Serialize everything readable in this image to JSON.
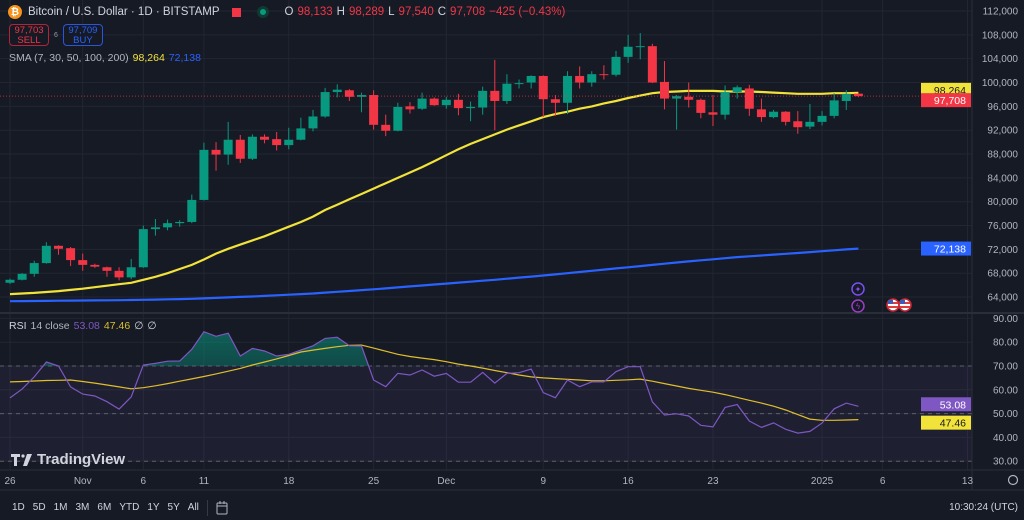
{
  "header": {
    "symbol_title": "Bitcoin / U.S. Dollar · 1D · BITSTAMP",
    "coin_icon": "bitcoin-icon",
    "ohlc": {
      "o_label": "O",
      "o": "98,133",
      "h_label": "H",
      "h": "98,289",
      "l_label": "L",
      "l": "97,540",
      "c_label": "C",
      "c": "97,708",
      "change": "−425 (−0.43%)"
    },
    "sell": {
      "price": "97,703",
      "label": "SELL"
    },
    "buy": {
      "price": "97,709",
      "label": "BUY"
    },
    "spread": "6"
  },
  "indicators": {
    "sma": {
      "label": "SMA (7, 30, 50, 100, 200)",
      "value1": "98,264",
      "value2": "72,138"
    },
    "rsi": {
      "name": "RSI",
      "params": "14 close",
      "value": "53.08",
      "ma_value": "47.46",
      "extra1": "∅",
      "extra2": "∅"
    }
  },
  "colors": {
    "up": "#089981",
    "down": "#f23645",
    "sma_fast": "#f2e33a",
    "sma_slow": "#2962ff",
    "rsi": "#7e57c2",
    "rsi_ma": "#e0bf2a",
    "background": "#161a25"
  },
  "price_tags": {
    "sma_fast": "98,264",
    "last": "97,708",
    "sma_slow": "72,138"
  },
  "rsi_tags": {
    "rsi": "53.08",
    "ma": "47.46"
  },
  "chart_data": {
    "type": "candlestick",
    "ylim": [
      62000,
      113000
    ],
    "y_ticks": [
      "112,000",
      "108,000",
      "104,000",
      "100,000",
      "96,000",
      "92,000",
      "88,000",
      "84,000",
      "80,000",
      "76,000",
      "72,000",
      "68,000",
      "64,000"
    ],
    "candles": [
      [
        "2024-10-26",
        66400,
        67100,
        66200,
        66900
      ],
      [
        "2024-10-27",
        66900,
        68000,
        66800,
        67900
      ],
      [
        "2024-10-28",
        67900,
        70100,
        67400,
        69700
      ],
      [
        "2024-10-29",
        69700,
        73200,
        69600,
        72600
      ],
      [
        "2024-10-30",
        72600,
        72700,
        71100,
        72100
      ],
      [
        "2024-10-31",
        72200,
        72400,
        69200,
        70200
      ],
      [
        "2024-11-01",
        70200,
        71300,
        68400,
        69400
      ],
      [
        "2024-11-02",
        69400,
        69600,
        68900,
        69100
      ],
      [
        "2024-11-03",
        69000,
        69100,
        67400,
        68400
      ],
      [
        "2024-11-04",
        68400,
        69000,
        66800,
        67300
      ],
      [
        "2024-11-05",
        67300,
        70400,
        67000,
        69000
      ],
      [
        "2024-11-06",
        69000,
        76000,
        68900,
        75400
      ],
      [
        "2024-11-07",
        75400,
        77100,
        74300,
        75700
      ],
      [
        "2024-11-08",
        75700,
        77000,
        75200,
        76400
      ],
      [
        "2024-11-09",
        76400,
        76900,
        75800,
        76600
      ],
      [
        "2024-11-10",
        76600,
        81200,
        76400,
        80300
      ],
      [
        "2024-11-11",
        80300,
        89900,
        80200,
        88700
      ],
      [
        "2024-11-12",
        88700,
        90000,
        85200,
        87900
      ],
      [
        "2024-11-13",
        87900,
        93400,
        86200,
        90400
      ],
      [
        "2024-11-14",
        90400,
        91200,
        86500,
        87200
      ],
      [
        "2024-11-15",
        87200,
        91300,
        87000,
        90900
      ],
      [
        "2024-11-16",
        90900,
        91300,
        89800,
        90400
      ],
      [
        "2024-11-17",
        90500,
        91700,
        88600,
        89500
      ],
      [
        "2024-11-18",
        89500,
        92400,
        88800,
        90400
      ],
      [
        "2024-11-19",
        90400,
        94100,
        90300,
        92300
      ],
      [
        "2024-11-20",
        92300,
        95400,
        91800,
        94300
      ],
      [
        "2024-11-21",
        94300,
        99100,
        94100,
        98400
      ],
      [
        "2024-11-22",
        98400,
        99700,
        97500,
        98800
      ],
      [
        "2024-11-23",
        98700,
        98900,
        96900,
        97600
      ],
      [
        "2024-11-24",
        97600,
        98300,
        95000,
        97900
      ],
      [
        "2024-11-25",
        97900,
        98700,
        92100,
        92900
      ],
      [
        "2024-11-26",
        92900,
        94600,
        91000,
        91900
      ],
      [
        "2024-11-27",
        91900,
        96600,
        91800,
        95900
      ],
      [
        "2024-11-28",
        96000,
        96700,
        94800,
        95500
      ],
      [
        "2024-11-29",
        95600,
        98300,
        95400,
        97300
      ],
      [
        "2024-11-30",
        97300,
        97500,
        96100,
        96200
      ],
      [
        "2024-12-01",
        96200,
        97600,
        95600,
        97100
      ],
      [
        "2024-12-02",
        97100,
        98100,
        94500,
        95700
      ],
      [
        "2024-12-03",
        95700,
        96800,
        93500,
        95900
      ],
      [
        "2024-12-04",
        95800,
        99300,
        94600,
        98600
      ],
      [
        "2024-12-05",
        98600,
        103800,
        92000,
        96900
      ],
      [
        "2024-12-06",
        96900,
        101400,
        96400,
        99800
      ],
      [
        "2024-12-07",
        99800,
        100500,
        99000,
        99900
      ],
      [
        "2024-12-08",
        100000,
        101200,
        99000,
        101100
      ],
      [
        "2024-12-09",
        101100,
        101200,
        94200,
        97200
      ],
      [
        "2024-12-10",
        97200,
        97900,
        94400,
        96600
      ],
      [
        "2024-12-11",
        96600,
        101900,
        94700,
        101100
      ],
      [
        "2024-12-12",
        101100,
        102700,
        99000,
        100000
      ],
      [
        "2024-12-13",
        100000,
        101900,
        99300,
        101400
      ],
      [
        "2024-12-14",
        101400,
        102900,
        100500,
        101300
      ],
      [
        "2024-12-15",
        101300,
        105300,
        101000,
        104300
      ],
      [
        "2024-12-16",
        104300,
        108000,
        103300,
        106000
      ],
      [
        "2024-12-17",
        106000,
        108300,
        103900,
        106100
      ],
      [
        "2024-12-18",
        106100,
        106500,
        99900,
        100000
      ],
      [
        "2024-12-19",
        100100,
        103600,
        95500,
        97300
      ],
      [
        "2024-12-20",
        97300,
        97900,
        92100,
        97700
      ],
      [
        "2024-12-21",
        97600,
        100000,
        95800,
        97100
      ],
      [
        "2024-12-22",
        97100,
        97300,
        94000,
        94900
      ],
      [
        "2024-12-23",
        95000,
        97900,
        92700,
        94600
      ],
      [
        "2024-12-24",
        94600,
        99500,
        93800,
        98400
      ],
      [
        "2024-12-25",
        98400,
        99500,
        97300,
        99200
      ],
      [
        "2024-12-26",
        99000,
        99600,
        94400,
        95600
      ],
      [
        "2024-12-27",
        95500,
        97300,
        93400,
        94200
      ],
      [
        "2024-12-28",
        94200,
        95400,
        94000,
        95100
      ],
      [
        "2024-12-29",
        95100,
        95200,
        92800,
        93400
      ],
      [
        "2024-12-30",
        93500,
        95200,
        91400,
        92500
      ],
      [
        "2024-12-31",
        92600,
        96400,
        92200,
        93400
      ],
      [
        "2025-01-01",
        93400,
        95200,
        92800,
        94400
      ],
      [
        "2025-01-02",
        94400,
        98200,
        94000,
        97000
      ],
      [
        "2025-01-03",
        96900,
        98700,
        95400,
        98100
      ],
      [
        "2025-01-04",
        98133,
        98289,
        97540,
        97708
      ]
    ],
    "sma_fast": [
      64500,
      64600,
      64700,
      64850,
      65000,
      65200,
      65400,
      65650,
      65900,
      66150,
      66400,
      66900,
      67400,
      68000,
      68700,
      69400,
      70300,
      71300,
      72100,
      72800,
      73500,
      74200,
      75000,
      75800,
      76600,
      77500,
      78600,
      79500,
      80400,
      81300,
      82200,
      83100,
      84000,
      84900,
      85800,
      86800,
      87800,
      88800,
      89700,
      90500,
      91300,
      92100,
      92800,
      93500,
      94200,
      94700,
      95100,
      95600,
      96000,
      96500,
      96900,
      97400,
      97800,
      98200,
      98400,
      98500,
      98600,
      98600,
      98600,
      98500,
      98500,
      98500,
      98400,
      98300,
      98200,
      98100,
      98100,
      98100,
      98200,
      98200,
      98264
    ],
    "sma_slow": [
      63300,
      63320,
      63340,
      63360,
      63380,
      63400,
      63420,
      63440,
      63460,
      63480,
      63500,
      63540,
      63580,
      63620,
      63660,
      63700,
      63780,
      63860,
      63940,
      64020,
      64100,
      64200,
      64300,
      64400,
      64500,
      64600,
      64740,
      64880,
      65020,
      65160,
      65300,
      65460,
      65620,
      65780,
      65940,
      66100,
      66260,
      66420,
      66580,
      66740,
      66900,
      67080,
      67260,
      67440,
      67620,
      67800,
      68000,
      68200,
      68400,
      68600,
      68800,
      69000,
      69200,
      69400,
      69600,
      69800,
      69980,
      70160,
      70340,
      70520,
      70700,
      70840,
      70980,
      71120,
      71260,
      71400,
      71550,
      71700,
      71850,
      72000,
      72138
    ],
    "rsi": {
      "ylim": [
        28,
        92
      ],
      "y_ticks": [
        "90.00",
        "80.00",
        "70.00",
        "60.00",
        "50.00",
        "40.00",
        "30.00"
      ],
      "bands": [
        70,
        50,
        30
      ],
      "values": [
        56.6,
        60.3,
        65.4,
        71.7,
        70,
        61.2,
        58.2,
        57.4,
        55,
        51.9,
        57,
        70.4,
        71.1,
        72,
        72.1,
        77,
        84.4,
        82.5,
        83.8,
        74.2,
        77.4,
        76.3,
        74.2,
        74.9,
        76.7,
        78.5,
        81.6,
        82.1,
        78.5,
        78.4,
        64.1,
        61.3,
        66.9,
        66.2,
        68.3,
        65.7,
        66.9,
        63.2,
        63.2,
        67.3,
        62.8,
        66.9,
        67.2,
        68.7,
        58.8,
        56.7,
        64.1,
        61.3,
        63.3,
        63.3,
        67.6,
        69.7,
        69.7,
        54.9,
        49.4,
        49.9,
        49,
        45.1,
        44.4,
        52.6,
        53.8,
        46.9,
        44.2,
        46.1,
        43.4,
        41.8,
        42.5,
        46,
        52,
        54.4,
        53.08
      ],
      "ma": [
        63.3,
        63.5,
        63.7,
        63.9,
        64.0,
        64.1,
        63.5,
        62.8,
        62.0,
        61.2,
        60.4,
        60.9,
        61.7,
        62.6,
        63.6,
        64.6,
        65.6,
        66.7,
        67.8,
        69.0,
        70.4,
        71.7,
        73.0,
        74.4,
        75.9,
        76.7,
        77.4,
        78.1,
        78.7,
        78.8,
        77.5,
        76.2,
        74.9,
        74.0,
        73.3,
        72.7,
        71.8,
        70.8,
        70.0,
        69.1,
        68.1,
        67.2,
        66.2,
        65.4,
        65.0,
        64.7,
        64.4,
        64.1,
        63.8,
        63.8,
        64.0,
        64.2,
        64.5,
        63.6,
        62.6,
        61.6,
        60.6,
        59.8,
        59.0,
        58.0,
        56.8,
        55.6,
        54.4,
        53.1,
        51.5,
        49.6,
        47.7,
        47.2,
        47.2,
        47.3,
        47.46
      ]
    },
    "x_ticks": [
      {
        "date": "2024-10-26",
        "label": "26"
      },
      {
        "date": "2024-11-01",
        "label": "Nov"
      },
      {
        "date": "2024-11-06",
        "label": "6"
      },
      {
        "date": "2024-11-11",
        "label": "11"
      },
      {
        "date": "2024-11-18",
        "label": "18"
      },
      {
        "date": "2024-11-25",
        "label": "25"
      },
      {
        "date": "2024-12-01",
        "label": "Dec"
      },
      {
        "date": "2024-12-09",
        "label": "9"
      },
      {
        "date": "2024-12-16",
        "label": "16"
      },
      {
        "date": "2024-12-23",
        "label": "23"
      },
      {
        "date": "2025-01-01",
        "label": "2025"
      },
      {
        "date": "2025-01-06",
        "label": "6"
      },
      {
        "date": "2025-01-13",
        "label": "13"
      }
    ],
    "grid": true
  },
  "events": [
    "crypto-event-icon",
    "lightning-event-icon",
    "us-flag-event-icon",
    "us-flag-event-icon"
  ],
  "branding": "TradingView",
  "toolbar": {
    "ranges": [
      "1D",
      "5D",
      "1M",
      "3M",
      "6M",
      "YTD",
      "1Y",
      "5Y",
      "All"
    ],
    "date_range_icon": "calendar-icon",
    "clock": "10:30:24 (UTC)",
    "settings_icon": "gear-icon"
  }
}
